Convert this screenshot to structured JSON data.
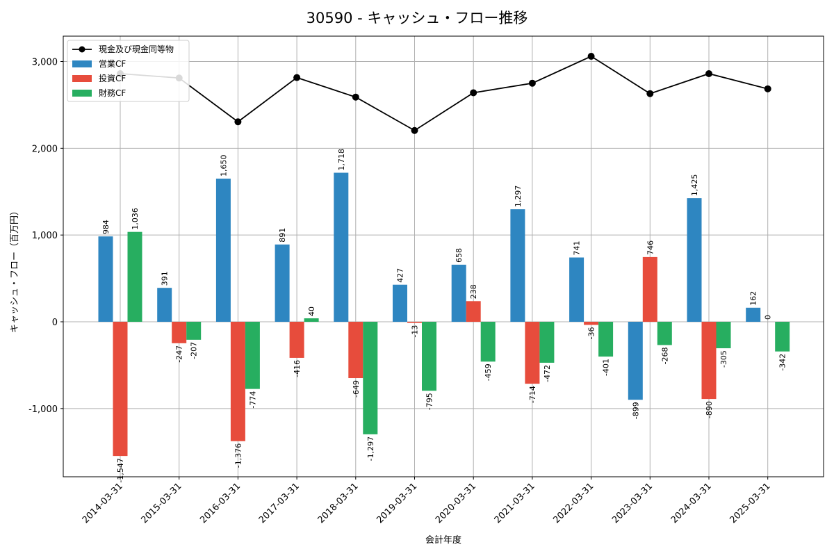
{
  "chart_data": {
    "type": "bar",
    "title": "30590 - キャッシュ・フロー推移",
    "xlabel": "会計年度",
    "ylabel": "キャッシュ・フロー（百万円）",
    "ylim": [
      -1800,
      3300
    ],
    "yticks": [
      -1000,
      0,
      1000,
      2000,
      3000
    ],
    "ytick_labels": [
      "-1,000",
      "0",
      "1,000",
      "2,000",
      "3,000"
    ],
    "grid": true,
    "legend_position": "top-left",
    "categories": [
      "2014-03-31",
      "2015-03-31",
      "2016-03-31",
      "2017-03-31",
      "2018-03-31",
      "2019-03-31",
      "2020-03-31",
      "2021-03-31",
      "2022-03-31",
      "2023-03-31",
      "2024-03-31",
      "2025-03-31"
    ],
    "series": [
      {
        "name": "営業CF",
        "kind": "bar",
        "color": "#2e86c1",
        "values": [
          984,
          391,
          1650,
          891,
          1718,
          427,
          658,
          1297,
          741,
          -899,
          1425,
          162
        ],
        "labels": [
          "984",
          "391",
          "1,650",
          "891",
          "1,718",
          "427",
          "658",
          "1,297",
          "741",
          "-899",
          "1,425",
          "162"
        ]
      },
      {
        "name": "投資CF",
        "kind": "bar",
        "color": "#e74c3c",
        "values": [
          -1547,
          -247,
          -1376,
          -416,
          -649,
          -13,
          238,
          -714,
          -36,
          746,
          -890,
          0
        ],
        "labels": [
          "-1,547",
          "-247",
          "-1,376",
          "-416",
          "-649",
          "-13",
          "238",
          "-714",
          "-36",
          "746",
          "-890",
          "0"
        ]
      },
      {
        "name": "財務CF",
        "kind": "bar",
        "color": "#27ae60",
        "values": [
          1036,
          -207,
          -774,
          40,
          -1297,
          -795,
          -459,
          -472,
          -401,
          -268,
          -305,
          -342
        ],
        "labels": [
          "1,036",
          "-207",
          "-774",
          "40",
          "-1,297",
          "-795",
          "-459",
          "-472",
          "-401",
          "-268",
          "-305",
          "-342"
        ]
      },
      {
        "name": "現金及び現金同等物",
        "kind": "line",
        "color": "#000000",
        "values": [
          2860,
          2810,
          2305,
          2815,
          2590,
          2205,
          2640,
          2750,
          3060,
          2630,
          2860,
          2685
        ]
      }
    ]
  }
}
